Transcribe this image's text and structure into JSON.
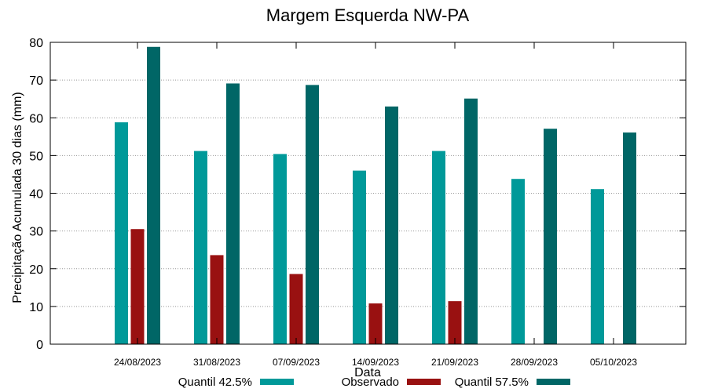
{
  "chart_data": {
    "type": "bar",
    "title": "Margem Esquerda NW-PA",
    "xlabel": "Data",
    "ylabel": "Precipitação Acumulada 30 dias (mm)",
    "ylim": [
      0,
      80
    ],
    "yticks": [
      0,
      10,
      20,
      30,
      40,
      50,
      60,
      70,
      80
    ],
    "grid": true,
    "legend_position": "bottom",
    "categories": [
      "24/08/2023",
      "31/08/2023",
      "07/09/2023",
      "14/09/2023",
      "21/09/2023",
      "28/09/2023",
      "05/10/2023"
    ],
    "series": [
      {
        "name": "Quantil 42.5%",
        "color": "#009999",
        "values": [
          58.8,
          51.2,
          50.4,
          46.0,
          51.2,
          43.8,
          41.1
        ]
      },
      {
        "name": "Observado",
        "color": "#991111",
        "values": [
          30.5,
          23.6,
          18.6,
          10.8,
          11.4,
          null,
          null
        ]
      },
      {
        "name": "Quantil 57.5%",
        "color": "#006666",
        "values": [
          78.8,
          69.1,
          68.7,
          63.0,
          65.1,
          57.1,
          56.1
        ]
      }
    ]
  }
}
